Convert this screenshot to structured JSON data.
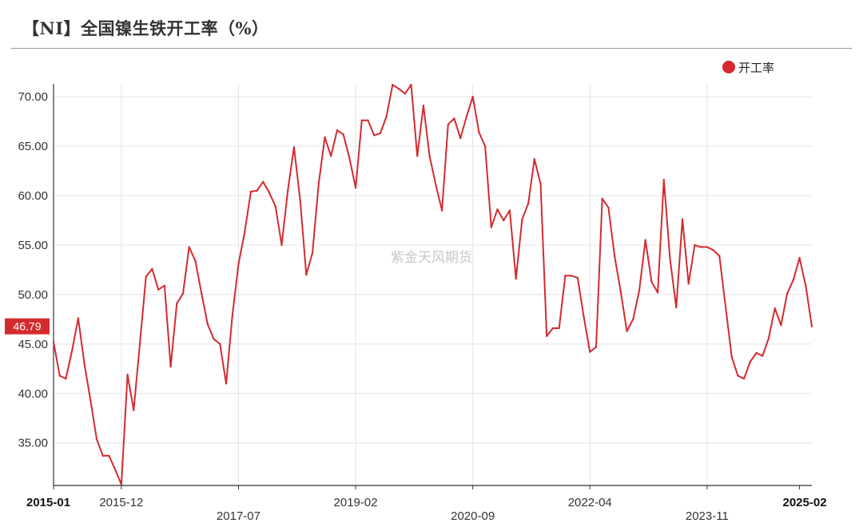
{
  "title": "【NI】全国镍生铁开工率（%）",
  "watermark": "紫金天风期货",
  "colors": {
    "series": "#d42a2e",
    "grid": "#e4e4e4",
    "axis": "#333333",
    "badge": "#d42a2e"
  },
  "chart_data": {
    "type": "line",
    "title": "【NI】全国镍生铁开工率（%）",
    "xlabel": "",
    "ylabel": "",
    "ylim": [
      30.7,
      71.3
    ],
    "y_ticks": [
      35.0,
      40.0,
      45.0,
      50.0,
      55.0,
      60.0,
      65.0,
      70.0
    ],
    "y_tick_labels": [
      "35.00",
      "40.00",
      "45.00",
      "50.00",
      "55.00",
      "60.00",
      "65.00",
      "70.00"
    ],
    "x_tick_labels": [
      "2015-01",
      "2015-12",
      "2017-07",
      "2019-02",
      "2020-09",
      "2022-04",
      "2023-11",
      "2025-02"
    ],
    "x_tick_index": [
      0,
      11,
      30,
      49,
      68,
      87,
      106,
      121
    ],
    "x_tick_bold": [
      true,
      false,
      false,
      false,
      false,
      false,
      false,
      true
    ],
    "grid": true,
    "legend_position": "top-right",
    "last_value_label": "46.79",
    "series": [
      {
        "name": "开工率",
        "color": "#d42a2e",
        "values": [
          45.2,
          41.8,
          41.5,
          44.3,
          47.6,
          43.0,
          39.3,
          35.4,
          33.7,
          33.7,
          32.3,
          30.8,
          41.9,
          38.3,
          45.0,
          51.8,
          52.6,
          50.5,
          50.9,
          42.7,
          49.1,
          50.1,
          54.8,
          53.4,
          50.1,
          47.0,
          45.5,
          45.0,
          41.0,
          47.8,
          53.1,
          56.3,
          60.4,
          60.5,
          61.4,
          60.3,
          58.9,
          55.0,
          60.5,
          64.9,
          59.6,
          52.0,
          54.2,
          61.2,
          65.9,
          64.0,
          66.6,
          66.2,
          63.8,
          60.8,
          67.6,
          67.6,
          66.1,
          66.3,
          68.0,
          71.2,
          70.8,
          70.3,
          71.2,
          64.0,
          69.1,
          64.0,
          61.1,
          58.5,
          67.2,
          67.8,
          65.8,
          68.0,
          70.0,
          66.4,
          65.0,
          56.8,
          58.6,
          57.5,
          58.5,
          51.6,
          57.6,
          59.2,
          63.7,
          61.2,
          45.8,
          46.6,
          46.6,
          51.9,
          51.9,
          51.7,
          47.8,
          44.2,
          44.7,
          59.7,
          58.8,
          53.9,
          50.3,
          46.3,
          47.5,
          50.4,
          55.5,
          51.3,
          50.2,
          61.6,
          53.6,
          48.7,
          57.6,
          51.1,
          55.0,
          54.8,
          54.8,
          54.5,
          53.9,
          48.8,
          43.7,
          41.8,
          41.5,
          43.2,
          44.1,
          43.8,
          45.6,
          48.6,
          46.9,
          50.1,
          51.5,
          53.7,
          50.9,
          46.79
        ]
      }
    ]
  }
}
